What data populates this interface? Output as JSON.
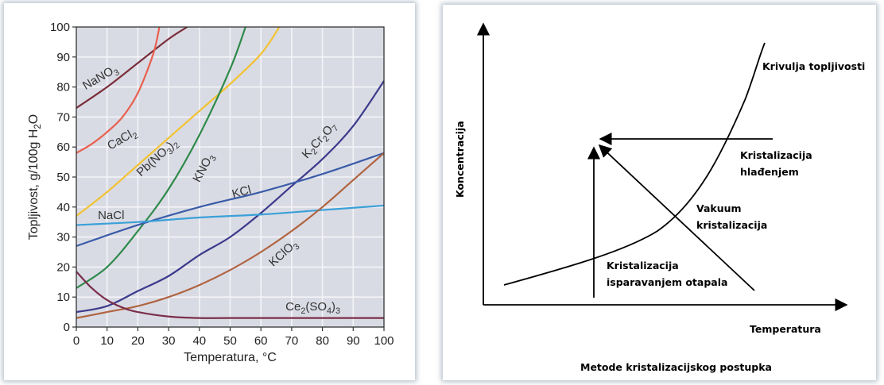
{
  "chart_data": [
    {
      "type": "line",
      "xlabel": "Temperatura, °C",
      "ylabel": "Topljivost, g/100g H₂O",
      "xlim": [
        0,
        100
      ],
      "ylim": [
        0,
        100
      ],
      "xticks": [
        0,
        10,
        20,
        30,
        40,
        50,
        60,
        70,
        80,
        90,
        100
      ],
      "yticks": [
        0,
        10,
        20,
        30,
        40,
        50,
        60,
        70,
        80,
        90,
        100
      ],
      "grid": true,
      "series": [
        {
          "name": "NaNO₃",
          "color": "#7a2e3a",
          "x": [
            0,
            10,
            20,
            30,
            36
          ],
          "y": [
            73,
            80,
            88,
            96,
            100
          ]
        },
        {
          "name": "CaCl₂",
          "color": "#e8604f",
          "x": [
            0,
            5,
            10,
            15,
            20,
            25,
            27
          ],
          "y": [
            58,
            61,
            65,
            70,
            78,
            91,
            100
          ]
        },
        {
          "name": "Pb(NO₃)₂",
          "color": "#f2c232",
          "x": [
            0,
            10,
            20,
            30,
            40,
            50,
            60,
            66
          ],
          "y": [
            37,
            45,
            54,
            63,
            72,
            81,
            91,
            100
          ]
        },
        {
          "name": "KNO₃",
          "color": "#2e8a4a",
          "x": [
            0,
            10,
            20,
            30,
            40,
            50,
            55
          ],
          "y": [
            13,
            20,
            32,
            46,
            64,
            86,
            100
          ]
        },
        {
          "name": "K₂Cr₂O₇",
          "color": "#3c3a8c",
          "x": [
            0,
            10,
            20,
            30,
            40,
            50,
            60,
            70,
            80,
            90,
            100
          ],
          "y": [
            5,
            7,
            12,
            17,
            24,
            30,
            38,
            47,
            56,
            67,
            82
          ]
        },
        {
          "name": "KCl",
          "color": "#3a5ca8",
          "x": [
            0,
            20,
            40,
            60,
            80,
            100
          ],
          "y": [
            27,
            34,
            40,
            45,
            51,
            58
          ]
        },
        {
          "name": "NaCl",
          "color": "#3aa0d8",
          "x": [
            0,
            20,
            40,
            60,
            80,
            100
          ],
          "y": [
            34,
            35,
            36.5,
            37.5,
            39,
            40.5
          ]
        },
        {
          "name": "KClO₃",
          "color": "#b06440",
          "x": [
            0,
            10,
            20,
            30,
            40,
            50,
            60,
            70,
            80,
            90,
            100
          ],
          "y": [
            3,
            5,
            7,
            10,
            14,
            19,
            25,
            32,
            40,
            49,
            58
          ]
        },
        {
          "name": "Ce₂(SO₄)₃",
          "color": "#7a2e4a",
          "x": [
            0,
            5,
            10,
            15,
            20,
            30,
            40,
            50,
            100
          ],
          "y": [
            18.5,
            13,
            9,
            6.5,
            5,
            3.5,
            3,
            3,
            3
          ]
        }
      ],
      "labels": {
        "nano3": [
          "NaNO",
          "3"
        ],
        "cacl2": [
          "CaCl",
          "2"
        ],
        "pbno32": [
          "Pb(NO",
          "3",
          ")",
          "2"
        ],
        "kno3": [
          "KNO",
          "3"
        ],
        "k2cr2o7": [
          "K",
          "2",
          "Cr",
          "2",
          "O",
          "7"
        ],
        "kcl": "KCl",
        "nacl": "NaCl",
        "kclo3": [
          "KClO",
          "3"
        ],
        "ce2so43": [
          "Ce",
          "2",
          "(SO",
          "4",
          ")",
          "3"
        ]
      },
      "ylabel_parts": [
        "Topljivost, g/100g H",
        "2",
        "O"
      ]
    },
    {
      "type": "line",
      "title": "Metode kristalizacijskog postupka",
      "xlabel": "Temperatura",
      "ylabel": "Koncentracija",
      "labels": {
        "krivulja": "Krivulja topljivosti",
        "hladenjem_1": "Kristalizacija",
        "hladenjem_2": "hlađenjem",
        "vakuum_1": "Vakuum",
        "vakuum_2": "kristalizacija",
        "isparavanjem_1": "Kristalizacija",
        "isparavanjem_2": "isparavanjem otapala"
      }
    }
  ]
}
